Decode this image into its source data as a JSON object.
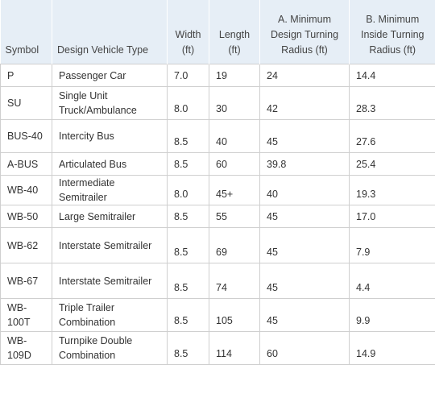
{
  "header": {
    "symbol": "Symbol",
    "type": "Design Vehicle Type",
    "width": "Width (ft)",
    "length": "Length (ft)",
    "min_design": "A. Minimum Design Turning Radius (ft)",
    "min_inside": "B. Minimum Inside Turning Radius (ft)"
  },
  "rows": [
    {
      "symbol": "P",
      "type": "Passenger Car",
      "width": "7.0",
      "length": "19",
      "design": "24",
      "inside": "14.4"
    },
    {
      "symbol": "SU",
      "type": "Single Unit Truck/Ambulance",
      "width": "8.0",
      "length": "30",
      "design": "42",
      "inside": "28.3"
    },
    {
      "symbol": "BUS-40",
      "type": "Intercity Bus",
      "width": "8.5",
      "length": "40",
      "design": "45",
      "inside": "27.6"
    },
    {
      "symbol": "A-BUS",
      "type": "Articulated Bus",
      "width": "8.5",
      "length": "60",
      "design": "39.8",
      "inside": "25.4"
    },
    {
      "symbol": "WB-40",
      "type": "Intermediate Semitrailer",
      "width": "8.0",
      "length": "45+",
      "design": "40",
      "inside": "19.3"
    },
    {
      "symbol": "WB-50",
      "type": "Large Semitrailer",
      "width": "8.5",
      "length": "55",
      "design": "45",
      "inside": "17.0"
    },
    {
      "symbol": "WB-62",
      "type": "Interstate Semitrailer",
      "width": "8.5",
      "length": "69",
      "design": "45",
      "inside": "7.9"
    },
    {
      "symbol": "WB-67",
      "type": "Interstate Semitrailer",
      "width": "8.5",
      "length": "74",
      "design": "45",
      "inside": "4.4"
    },
    {
      "symbol": "WB-100T",
      "type": "Triple Trailer Combination",
      "width": "8.5",
      "length": "105",
      "design": "45",
      "inside": "9.9"
    },
    {
      "symbol": "WB-109D",
      "type": "Turnpike Double Combination",
      "width": "8.5",
      "length": "114",
      "design": "60",
      "inside": "14.9"
    }
  ]
}
